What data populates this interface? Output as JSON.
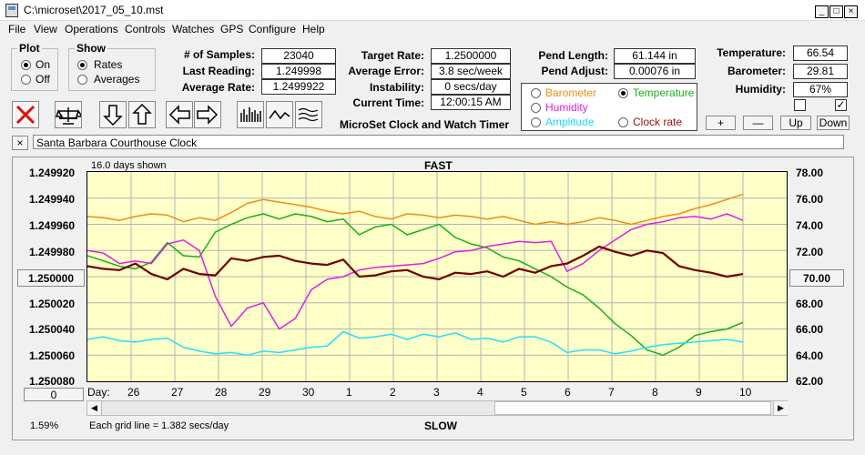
{
  "window": {
    "title": "C:\\microset\\2017_05_10.mst"
  },
  "menu": [
    "File",
    "View",
    "Operations",
    "Controls",
    "Watches",
    "GPS",
    "Configure",
    "Help"
  ],
  "plot_group": {
    "title": "Plot",
    "on": "On",
    "off": "Off",
    "selected": "On"
  },
  "show_group": {
    "title": "Show",
    "rates": "Rates",
    "averages": "Averages",
    "selected": "Rates"
  },
  "stats": {
    "samples_label": "# of Samples:",
    "samples": "23040",
    "last_label": "Last Reading:",
    "last": "1.249998",
    "avg_rate_label": "Average Rate:",
    "avg_rate": "1.2499922"
  },
  "targets": {
    "target_label": "Target Rate:",
    "target": "1.2500000",
    "avg_err_label": "Average Error:",
    "avg_err": "3.8 sec/week",
    "instab_label": "Instability:",
    "instab": "0 secs/day",
    "time_label": "Current Time:",
    "time": "12:00:15 AM",
    "app_name": "MicroSet Clock and Watch Timer"
  },
  "pend": {
    "length_label": "Pend Length:",
    "length": "61.144 in",
    "adjust_label": "Pend Adjust:",
    "adjust": "0.00076 in"
  },
  "sensors": {
    "barometer": "Barometer",
    "temperature": "Temperature",
    "humidity": "Humidity",
    "amplitude": "Amplitude",
    "clock_rate": "Clock rate",
    "selected": "Temperature"
  },
  "env": {
    "temp_label": "Temperature:",
    "temp": "66.54",
    "baro_label": "Barometer:",
    "baro": "29.81",
    "hum_label": "Humidity:",
    "hum": "67%"
  },
  "scale_buttons": {
    "plus": "+",
    "minus": "—",
    "up": "Up",
    "down": "Down"
  },
  "clock_name": "Santa Barbara Courthouse Clock",
  "close_x": "×",
  "colors": {
    "barometer": "#f08c14",
    "temperature": "#18b018",
    "humidity": "#e020e0",
    "amplitude": "#20e0ff",
    "rate": "#700000",
    "chart_bg": "#ffffc8"
  },
  "chart_data": {
    "type": "line",
    "top_left": "16.0 days shown",
    "top_label": "FAST",
    "bottom_label": "SLOW",
    "bottom_note": "Each grid line = 1.382 secs/day",
    "corner_pct": "1.59%",
    "center_button": "1.250000",
    "right_button": "70.00",
    "zero_button": "0",
    "x_prefix": "Day:",
    "x_ticks": [
      "26",
      "27",
      "28",
      "29",
      "30",
      "1",
      "2",
      "3",
      "4",
      "5",
      "6",
      "7",
      "8",
      "9",
      "10"
    ],
    "y_left_ticks": [
      "1.249920",
      "1.249940",
      "1.249960",
      "1.249980",
      "",
      "1.250020",
      "1.250040",
      "1.250060",
      "1.250080"
    ],
    "y_right_ticks": [
      "78.00",
      "76.00",
      "74.00",
      "72.00",
      "",
      "68.00",
      "66.00",
      "64.00",
      "62.00"
    ],
    "ylim_left": [
      1.24992,
      1.25008
    ],
    "ylim_right": [
      62,
      78
    ],
    "xlim": [
      0,
      16
    ],
    "series": [
      {
        "key": "barometer",
        "values": [
          74.6,
          74.5,
          74.3,
          74.6,
          74.8,
          74.7,
          74.2,
          74.5,
          74.3,
          74.9,
          75.6,
          75.9,
          75.7,
          75.5,
          75.3,
          75.0,
          74.8,
          75.0,
          74.6,
          74.4,
          74.8,
          74.7,
          74.5,
          74.7,
          74.6,
          74.4,
          74.6,
          74.3,
          74.0,
          74.2,
          74.0,
          74.2,
          74.5,
          74.3,
          74.0,
          74.3,
          74.6,
          74.8,
          75.2,
          75.5,
          75.9,
          76.3
        ]
      },
      {
        "key": "temperature",
        "values": [
          71.6,
          71.2,
          70.8,
          70.6,
          71.1,
          72.6,
          71.6,
          71.5,
          73.4,
          74.0,
          74.5,
          74.8,
          74.4,
          74.8,
          74.6,
          74.2,
          74.4,
          73.2,
          73.8,
          74.0,
          73.2,
          73.6,
          74.0,
          73.0,
          72.5,
          72.2,
          71.5,
          71.2,
          70.6,
          70.0,
          69.2,
          68.6,
          67.6,
          66.4,
          65.5,
          64.4,
          64.0,
          64.6,
          65.5,
          65.8,
          66.0,
          66.5
        ]
      },
      {
        "key": "humidity",
        "values": [
          72.0,
          71.8,
          71.0,
          71.2,
          71.0,
          72.5,
          72.8,
          72.0,
          68.5,
          66.2,
          67.6,
          68.0,
          66.0,
          66.8,
          69.0,
          69.8,
          70.0,
          70.5,
          70.7,
          70.8,
          70.9,
          71.0,
          71.4,
          71.9,
          72.0,
          72.3,
          72.5,
          72.7,
          72.6,
          72.7,
          70.4,
          71.0,
          72.0,
          72.8,
          73.6,
          74.0,
          74.2,
          74.5,
          74.6,
          74.4,
          74.8,
          74.3
        ]
      },
      {
        "key": "amplitude",
        "values": [
          65.2,
          65.4,
          65.1,
          65.0,
          65.2,
          65.3,
          64.6,
          64.3,
          64.1,
          64.2,
          64.0,
          64.3,
          64.2,
          64.4,
          64.6,
          64.7,
          65.8,
          65.3,
          65.4,
          65.6,
          65.2,
          65.6,
          65.4,
          65.7,
          65.2,
          65.3,
          65.0,
          65.4,
          65.4,
          65.0,
          64.2,
          64.4,
          64.4,
          64.1,
          64.3,
          64.6,
          64.8,
          64.9,
          65.0,
          65.1,
          65.2,
          65.0
        ]
      },
      {
        "key": "rate",
        "values": [
          70.8,
          70.6,
          70.5,
          71.0,
          70.2,
          69.8,
          70.6,
          70.2,
          70.1,
          71.4,
          71.2,
          71.5,
          71.6,
          71.2,
          71.0,
          70.9,
          71.3,
          70.0,
          70.1,
          70.4,
          70.5,
          70.0,
          69.8,
          70.3,
          70.2,
          70.4,
          70.0,
          70.6,
          70.3,
          70.8,
          71.0,
          71.6,
          72.3,
          71.9,
          71.6,
          72.0,
          71.8,
          70.8,
          70.5,
          70.3,
          70.0,
          70.2
        ]
      }
    ]
  }
}
